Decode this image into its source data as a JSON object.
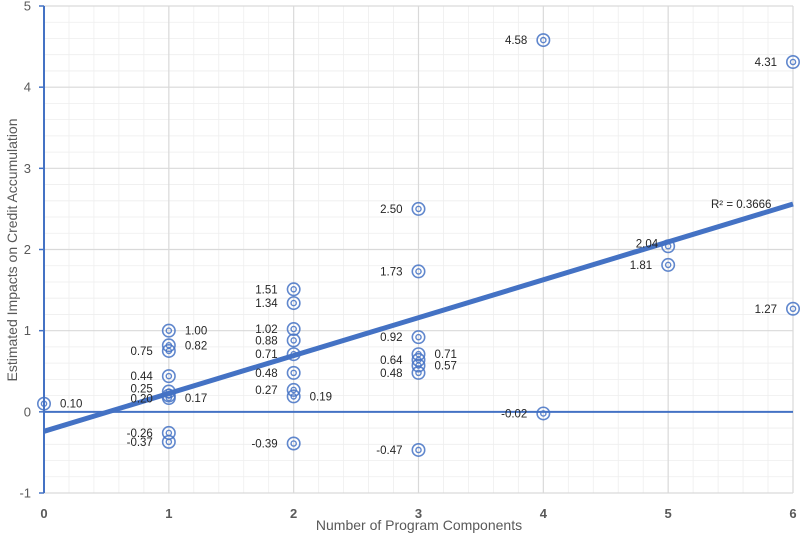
{
  "chart_data": {
    "type": "scatter",
    "title": "",
    "xlabel": "Number of Program Components",
    "ylabel": "Estimated Impacts on Credit Accumulation",
    "xlim": [
      0,
      6
    ],
    "ylim": [
      -1,
      5
    ],
    "xticks": [
      "0",
      "1",
      "2",
      "3",
      "4",
      "5",
      "6"
    ],
    "yticks": [
      "-1",
      "0",
      "1",
      "2",
      "3",
      "4",
      "5"
    ],
    "grid": true,
    "colors": {
      "marker": "#4472c4",
      "trendline": "#4472c4",
      "axis": "#4472c4",
      "grid": "#d9d9d9",
      "minor_grid": "#eeeeee"
    },
    "points": [
      {
        "x": 0,
        "y": 0.1,
        "label": "0.10"
      },
      {
        "x": 1,
        "y": 1.0,
        "label": "1.00"
      },
      {
        "x": 1,
        "y": 0.82,
        "label": "0.82"
      },
      {
        "x": 1,
        "y": 0.75,
        "label": "0.75"
      },
      {
        "x": 1,
        "y": 0.44,
        "label": "0.44"
      },
      {
        "x": 1,
        "y": 0.25,
        "label": "0.25"
      },
      {
        "x": 1,
        "y": 0.2,
        "label": "0.20"
      },
      {
        "x": 1,
        "y": 0.17,
        "label": "0.17"
      },
      {
        "x": 1,
        "y": -0.26,
        "label": "-0.26"
      },
      {
        "x": 1,
        "y": -0.37,
        "label": "-0.37"
      },
      {
        "x": 2,
        "y": 1.51,
        "label": "1.51"
      },
      {
        "x": 2,
        "y": 1.34,
        "label": "1.34"
      },
      {
        "x": 2,
        "y": 1.02,
        "label": "1.02"
      },
      {
        "x": 2,
        "y": 0.88,
        "label": "0.88"
      },
      {
        "x": 2,
        "y": 0.71,
        "label": "0.71"
      },
      {
        "x": 2,
        "y": 0.48,
        "label": "0.48"
      },
      {
        "x": 2,
        "y": 0.27,
        "label": "0.27"
      },
      {
        "x": 2,
        "y": 0.19,
        "label": "0.19"
      },
      {
        "x": 2,
        "y": -0.39,
        "label": "-0.39"
      },
      {
        "x": 3,
        "y": 2.5,
        "label": "2.50"
      },
      {
        "x": 3,
        "y": 1.73,
        "label": "1.73"
      },
      {
        "x": 3,
        "y": 0.92,
        "label": "0.92"
      },
      {
        "x": 3,
        "y": 0.71,
        "label": "0.71"
      },
      {
        "x": 3,
        "y": 0.64,
        "label": "0.64"
      },
      {
        "x": 3,
        "y": 0.57,
        "label": "0.57"
      },
      {
        "x": 3,
        "y": 0.48,
        "label": "0.48"
      },
      {
        "x": 3,
        "y": -0.47,
        "label": "-0.47"
      },
      {
        "x": 4,
        "y": 4.58,
        "label": "4.58"
      },
      {
        "x": 4,
        "y": -0.02,
        "label": "-0.02"
      },
      {
        "x": 5,
        "y": 2.04,
        "label": "2.04"
      },
      {
        "x": 5,
        "y": 1.81,
        "label": "1.81"
      },
      {
        "x": 6,
        "y": 4.31,
        "label": "4.31"
      },
      {
        "x": 6,
        "y": 1.27,
        "label": "1.27"
      }
    ],
    "trendline": {
      "type": "linear",
      "intercept": -0.24,
      "slope": 0.4667,
      "r2_label": "R² = 0.3666"
    }
  }
}
